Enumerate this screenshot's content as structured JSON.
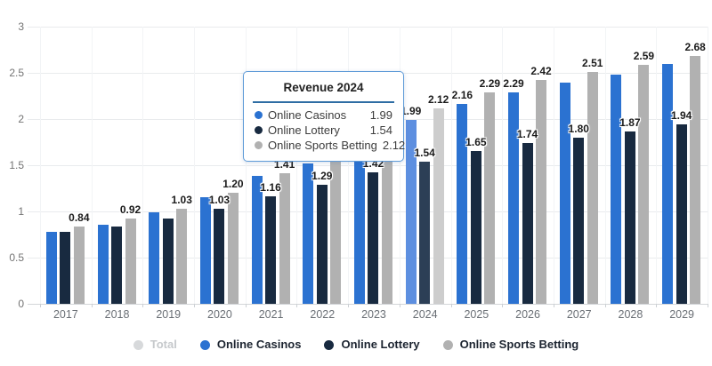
{
  "chart_data": {
    "type": "bar",
    "title": "",
    "categories": [
      "2017",
      "2018",
      "2019",
      "2020",
      "2021",
      "2022",
      "2023",
      "2024",
      "2025",
      "2026",
      "2027",
      "2028",
      "2029"
    ],
    "series": [
      {
        "name": "Online Casinos",
        "color": "#2b72d1",
        "hover_color": "#5d8fe0",
        "values": [
          0.78,
          0.86,
          0.99,
          1.15,
          1.38,
          1.52,
          1.76,
          1.99,
          2.16,
          2.29,
          2.39,
          2.48,
          2.6
        ],
        "label_shown": [
          false,
          false,
          false,
          false,
          false,
          false,
          false,
          true,
          true,
          true,
          false,
          false,
          false
        ]
      },
      {
        "name": "Online Lottery",
        "color": "#182a40",
        "hover_color": "#2c3f56",
        "values": [
          0.78,
          0.84,
          0.92,
          1.03,
          1.16,
          1.29,
          1.42,
          1.54,
          1.65,
          1.74,
          1.8,
          1.87,
          1.94
        ],
        "label_shown": [
          false,
          false,
          false,
          true,
          true,
          true,
          true,
          true,
          true,
          true,
          true,
          true,
          true
        ]
      },
      {
        "name": "Online Sports Betting",
        "color": "#b1b1b1",
        "hover_color": "#cdcdcd",
        "values": [
          0.84,
          0.92,
          1.03,
          1.2,
          1.41,
          1.55,
          1.85,
          2.12,
          2.29,
          2.42,
          2.51,
          2.59,
          2.68
        ],
        "label_shown": [
          true,
          true,
          true,
          true,
          true,
          false,
          false,
          true,
          true,
          true,
          true,
          true,
          true
        ]
      }
    ],
    "highlighted_category": "2024",
    "ylim": [
      0,
      3
    ],
    "yticks": [
      0,
      0.5,
      1,
      1.5,
      2,
      2.5,
      3
    ],
    "grid": true,
    "legend_position": "bottom",
    "value_format": "2-decimals"
  },
  "tooltip": {
    "title": "Revenue 2024",
    "rows": [
      {
        "name": "Online Casinos",
        "value": "1.99",
        "color": "#2b72d1"
      },
      {
        "name": "Online Lottery",
        "value": "1.54",
        "color": "#182a40"
      },
      {
        "name": "Online Sports Betting",
        "value": "2.12",
        "color": "#b1b1b1"
      }
    ]
  },
  "legend": {
    "items": [
      {
        "label": "Total",
        "color": "#d7d9db",
        "text_color": "#c6c9cc",
        "disabled": true
      },
      {
        "label": "Online Casinos",
        "color": "#2b72d1",
        "text_color": "#1c2430",
        "disabled": false
      },
      {
        "label": "Online Lottery",
        "color": "#182a40",
        "text_color": "#1c2430",
        "disabled": false
      },
      {
        "label": "Online Sports Betting",
        "color": "#b1b1b1",
        "text_color": "#1c2430",
        "disabled": false
      }
    ]
  }
}
